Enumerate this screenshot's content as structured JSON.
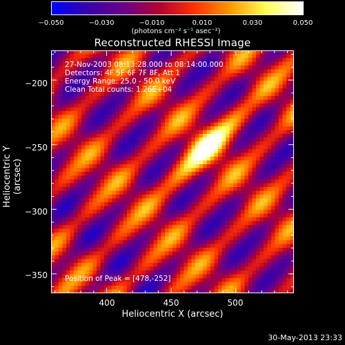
{
  "colorbar": {
    "ticks": [
      "−0.050",
      "−0.030",
      "−0.010",
      "0.010",
      "0.030",
      "0.050"
    ],
    "unit_text": "(photons cm⁻² s⁻¹ asec⁻²)"
  },
  "chart_data": {
    "type": "heatmap",
    "title": "Reconstructed RHESSI Image",
    "xlabel": "Heliocentric X (arcsec)",
    "ylabel": "Heliocentric Y (arcsec)",
    "xlim": [
      357,
      545
    ],
    "ylim": [
      -365,
      -177
    ],
    "xticks": [
      "400",
      "450",
      "500"
    ],
    "yticks": [
      "−200",
      "−250",
      "−300",
      "−350"
    ],
    "clim": [
      -0.05,
      0.05
    ],
    "colormap": [
      "#0000ff",
      "#3a00a6",
      "#6a0088",
      "#b20030",
      "#ff3300",
      "#ff9900",
      "#ffff55",
      "#ffffff"
    ],
    "peak": [
      478,
      -252
    ],
    "annotations": {
      "time": "27-Nov-2003 08:13:28.000 to 08:14:00.000",
      "detectors": "Detectors: 4F 5F 6F 7F 8F, Att 1",
      "energy": "Energy Range: 25.0 - 50.0 keV",
      "clean": "Clean     Total counts: 1.26E+04",
      "peak_text": "Position of Peak = [478,-252]"
    }
  },
  "footer": "30-May-2013 23:33"
}
